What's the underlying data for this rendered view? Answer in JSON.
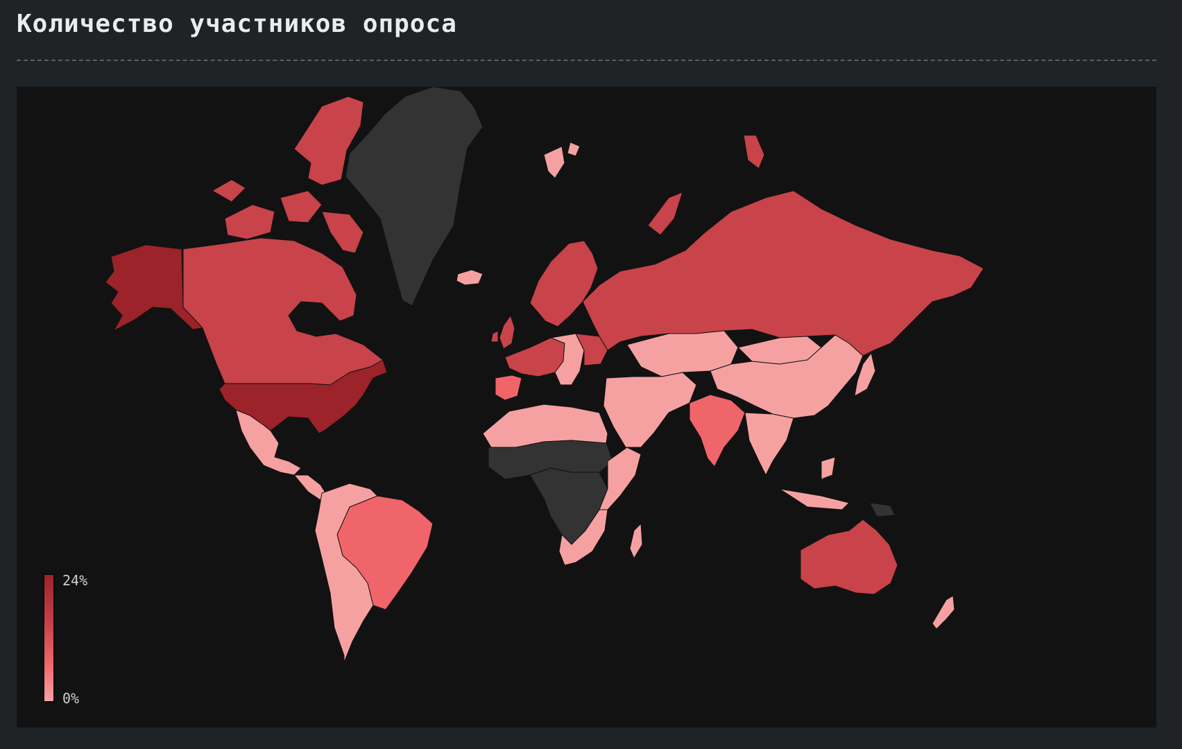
{
  "title": "Количество участников опроса",
  "legend": {
    "max_label": "24%",
    "min_label": "0%"
  },
  "colors": {
    "page_bg": "#202325",
    "map_bg": "#121212",
    "no_data": "#333333",
    "scale_low": "#f6a1a1",
    "scale_mid": "#f0656a",
    "scale_high": "#c8434a",
    "scale_max": "#9b2329"
  },
  "map_data": {
    "type": "choropleth",
    "metric": "survey participants share",
    "range_percent": [
      0,
      24
    ],
    "regions": [
      {
        "name": "United States",
        "level": "max"
      },
      {
        "name": "Alaska",
        "level": "max"
      },
      {
        "name": "Canada",
        "level": "high"
      },
      {
        "name": "Greenland",
        "level": "no_data"
      },
      {
        "name": "Mexico",
        "level": "low"
      },
      {
        "name": "Central America",
        "level": "low"
      },
      {
        "name": "Brazil",
        "level": "mid"
      },
      {
        "name": "South America (other)",
        "level": "low"
      },
      {
        "name": "Iceland",
        "level": "low"
      },
      {
        "name": "Scandinavia",
        "level": "high"
      },
      {
        "name": "United Kingdom",
        "level": "high"
      },
      {
        "name": "Western Europe",
        "level": "high"
      },
      {
        "name": "Spain",
        "level": "mid"
      },
      {
        "name": "Eastern Europe",
        "level": "low"
      },
      {
        "name": "Ukraine",
        "level": "high"
      },
      {
        "name": "Russia",
        "level": "high"
      },
      {
        "name": "Kazakhstan / Central Asia",
        "level": "low"
      },
      {
        "name": "China",
        "level": "low"
      },
      {
        "name": "Mongolia",
        "level": "low"
      },
      {
        "name": "India",
        "level": "mid"
      },
      {
        "name": "Southeast Asia",
        "level": "low"
      },
      {
        "name": "Japan",
        "level": "low"
      },
      {
        "name": "Middle East",
        "level": "low"
      },
      {
        "name": "North Africa",
        "level": "low"
      },
      {
        "name": "Sahel",
        "level": "no_data"
      },
      {
        "name": "Central Africa",
        "level": "no_data"
      },
      {
        "name": "East Africa",
        "level": "low"
      },
      {
        "name": "South Africa",
        "level": "low"
      },
      {
        "name": "Madagascar",
        "level": "low"
      },
      {
        "name": "Australia",
        "level": "high"
      },
      {
        "name": "New Zealand",
        "level": "low"
      },
      {
        "name": "Papua New Guinea",
        "level": "no_data"
      },
      {
        "name": "Svalbard",
        "level": "low"
      }
    ]
  }
}
